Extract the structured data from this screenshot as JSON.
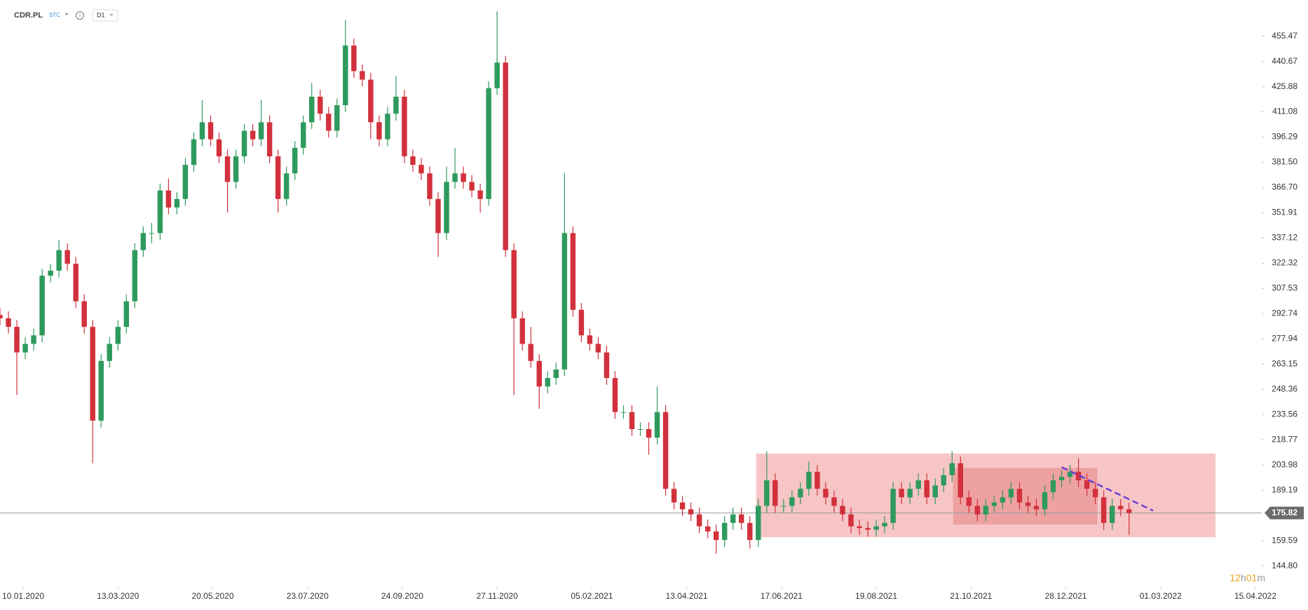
{
  "chart_data": {
    "type": "candlestick",
    "symbol": "CDR.PL",
    "type_label": "STC",
    "interval": "D1",
    "countdown": [
      "12",
      "h",
      "01",
      "m"
    ],
    "up_color": "#2e9a5e",
    "down_color": "#d2313c",
    "xlim": [
      -11,
      590
    ],
    "ylim": [
      132.5,
      476.7
    ],
    "xticks": [
      {
        "value": 0,
        "label": "10.01.2020"
      },
      {
        "value": 45,
        "label": "13.03.2020"
      },
      {
        "value": 90,
        "label": "20.05.2020"
      },
      {
        "value": 135,
        "label": "23.07.2020"
      },
      {
        "value": 180,
        "label": "24.09.2020"
      },
      {
        "value": 225,
        "label": "27.11.2020"
      },
      {
        "value": 270,
        "label": "05.02.2021"
      },
      {
        "value": 315,
        "label": "13.04.2021"
      },
      {
        "value": 360,
        "label": "17.06.2021"
      },
      {
        "value": 405,
        "label": "19.08.2021"
      },
      {
        "value": 450,
        "label": "21.10.2021"
      },
      {
        "value": 495,
        "label": "28.12.2021"
      },
      {
        "value": 540,
        "label": "01.03.2022"
      },
      {
        "value": 585,
        "label": "15.04.2022"
      }
    ],
    "yticks": [
      {
        "value": 144.8,
        "label": "144.80"
      },
      159.59,
      189.19,
      203.98,
      218.77,
      233.56,
      248.36,
      263.15,
      277.94,
      292.74,
      307.53,
      322.32,
      337.12,
      351.91,
      {
        "value": 366.7,
        "label": "366.70"
      },
      {
        "value": 381.5,
        "label": "381.50"
      },
      396.29,
      411.08,
      425.88,
      440.67,
      455.47
    ],
    "zones": [
      {
        "x": [
          348,
          566
        ],
        "y": [
          161.6,
          210.7
        ],
        "color": "rgba(236,110,110,0.4)"
      },
      {
        "x": [
          441.5,
          510
        ],
        "y": [
          169.1,
          202.2
        ],
        "color": "rgba(220,80,80,0.3)"
      }
    ],
    "trend_line": {
      "x": [
        493,
        536.4
      ],
      "y": [
        202.7,
        177.2
      ],
      "color": "#6a3fd6"
    },
    "candles": [
      [
        -11,
        292,
        296,
        286,
        290
      ],
      [
        -7,
        290,
        294,
        281,
        285
      ],
      [
        -3,
        285,
        289,
        245,
        270
      ],
      [
        1,
        270,
        279,
        266,
        275
      ],
      [
        5,
        275,
        284,
        271,
        280
      ],
      [
        9,
        280,
        319,
        276,
        315
      ],
      [
        13,
        315,
        322,
        311,
        318
      ],
      [
        17,
        318,
        336,
        314,
        330
      ],
      [
        21,
        330,
        334,
        318,
        322
      ],
      [
        25,
        322,
        326,
        296,
        300
      ],
      [
        29,
        300,
        304,
        281,
        285
      ],
      [
        33,
        285,
        289,
        205,
        230
      ],
      [
        37,
        230,
        269,
        226,
        265
      ],
      [
        41,
        265,
        279,
        261,
        275
      ],
      [
        45,
        275,
        289,
        271,
        285
      ],
      [
        49,
        285,
        304,
        281,
        300
      ],
      [
        53,
        300,
        334,
        296,
        330
      ],
      [
        57,
        330,
        344,
        326,
        340
      ],
      [
        61,
        340,
        346,
        334,
        340
      ],
      [
        65,
        340,
        369,
        336,
        365
      ],
      [
        69,
        365,
        372,
        351,
        355
      ],
      [
        73,
        355,
        364,
        351,
        360
      ],
      [
        77,
        360,
        384,
        356,
        380
      ],
      [
        81,
        380,
        399,
        376,
        395
      ],
      [
        85,
        395,
        418,
        391,
        405
      ],
      [
        89,
        405,
        409,
        391,
        395
      ],
      [
        93,
        395,
        399,
        381,
        385
      ],
      [
        97,
        385,
        389,
        352,
        370
      ],
      [
        101,
        370,
        389,
        366,
        385
      ],
      [
        105,
        385,
        404,
        381,
        400
      ],
      [
        109,
        400,
        404,
        391,
        395
      ],
      [
        113,
        395,
        418,
        391,
        405
      ],
      [
        117,
        405,
        409,
        381,
        385
      ],
      [
        121,
        385,
        389,
        352,
        360
      ],
      [
        125,
        360,
        379,
        356,
        375
      ],
      [
        129,
        375,
        394,
        371,
        390
      ],
      [
        133,
        390,
        409,
        386,
        405
      ],
      [
        137,
        405,
        428,
        401,
        420
      ],
      [
        141,
        420,
        424,
        406,
        410
      ],
      [
        145,
        410,
        414,
        396,
        400
      ],
      [
        149,
        400,
        419,
        396,
        415
      ],
      [
        153,
        415,
        465,
        411,
        450
      ],
      [
        157,
        450,
        454,
        431,
        435
      ],
      [
        161,
        435,
        439,
        426,
        430
      ],
      [
        165,
        430,
        434,
        395,
        405
      ],
      [
        169,
        405,
        409,
        391,
        395
      ],
      [
        173,
        395,
        414,
        391,
        410
      ],
      [
        177,
        410,
        432,
        406,
        420
      ],
      [
        181,
        420,
        424,
        381,
        385
      ],
      [
        185,
        385,
        389,
        376,
        380
      ],
      [
        189,
        380,
        384,
        371,
        375
      ],
      [
        193,
        375,
        379,
        356,
        360
      ],
      [
        197,
        360,
        364,
        326,
        340
      ],
      [
        201,
        340,
        379,
        336,
        370
      ],
      [
        205,
        370,
        390,
        366,
        375
      ],
      [
        209,
        375,
        379,
        366,
        370
      ],
      [
        213,
        370,
        374,
        361,
        365
      ],
      [
        217,
        365,
        369,
        352,
        360
      ],
      [
        221,
        360,
        429,
        356,
        425
      ],
      [
        225,
        425,
        470,
        421,
        440
      ],
      [
        229,
        440,
        444,
        326,
        330
      ],
      [
        233,
        330,
        334,
        245,
        290
      ],
      [
        237,
        290,
        294,
        271,
        275
      ],
      [
        241,
        275,
        285,
        261,
        265
      ],
      [
        245,
        265,
        269,
        237,
        250
      ],
      [
        249,
        250,
        259,
        246,
        255
      ],
      [
        253,
        255,
        264,
        251,
        260
      ],
      [
        257,
        260,
        375,
        256,
        340
      ],
      [
        261,
        340,
        344,
        291,
        295
      ],
      [
        265,
        295,
        299,
        276,
        280
      ],
      [
        269,
        280,
        284,
        271,
        275
      ],
      [
        273,
        275,
        279,
        266,
        270
      ],
      [
        277,
        270,
        274,
        251,
        255
      ],
      [
        281,
        255,
        259,
        231,
        235
      ],
      [
        285,
        235,
        239,
        231,
        235
      ],
      [
        289,
        235,
        239,
        221,
        225
      ],
      [
        293,
        225,
        229,
        221,
        225
      ],
      [
        297,
        225,
        229,
        210,
        220
      ],
      [
        301,
        220,
        250,
        216,
        235
      ],
      [
        305,
        235,
        239,
        186,
        190
      ],
      [
        309,
        190,
        194,
        178,
        182
      ],
      [
        313,
        182,
        186,
        174,
        178
      ],
      [
        317,
        178,
        182,
        171,
        175
      ],
      [
        321,
        175,
        179,
        164,
        168
      ],
      [
        325,
        168,
        172,
        161,
        165
      ],
      [
        329,
        165,
        169,
        152,
        160
      ],
      [
        333,
        160,
        174,
        156,
        170
      ],
      [
        337,
        170,
        179,
        166,
        175
      ],
      [
        341,
        175,
        179,
        166,
        170
      ],
      [
        345,
        170,
        174,
        155,
        160
      ],
      [
        349,
        160,
        184,
        156,
        180
      ],
      [
        353,
        180,
        212,
        176,
        195
      ],
      [
        357,
        195,
        199,
        176,
        180
      ],
      [
        361,
        180,
        184,
        176,
        180
      ],
      [
        365,
        180,
        189,
        176,
        185
      ],
      [
        369,
        185,
        194,
        181,
        190
      ],
      [
        373,
        190,
        206,
        186,
        200
      ],
      [
        377,
        200,
        204,
        186,
        190
      ],
      [
        381,
        190,
        194,
        181,
        185
      ],
      [
        385,
        185,
        189,
        176,
        180
      ],
      [
        389,
        180,
        184,
        171,
        175
      ],
      [
        393,
        175,
        179,
        164,
        168
      ],
      [
        397,
        168,
        172,
        163,
        167
      ],
      [
        401,
        167,
        171,
        162,
        166
      ],
      [
        405,
        166,
        172,
        162,
        168
      ],
      [
        409,
        168,
        174,
        164,
        170
      ],
      [
        413,
        170,
        194,
        166,
        190
      ],
      [
        417,
        190,
        194,
        181,
        185
      ],
      [
        421,
        185,
        194,
        181,
        190
      ],
      [
        425,
        190,
        199,
        186,
        195
      ],
      [
        429,
        195,
        199,
        181,
        185
      ],
      [
        433,
        185,
        196,
        181,
        192
      ],
      [
        437,
        192,
        202,
        188,
        198
      ],
      [
        441,
        198,
        212,
        194,
        205
      ],
      [
        445,
        205,
        209,
        181,
        185
      ],
      [
        449,
        185,
        189,
        176,
        180
      ],
      [
        453,
        180,
        184,
        171,
        175
      ],
      [
        457,
        175,
        184,
        171,
        180
      ],
      [
        461,
        180,
        186,
        176,
        182
      ],
      [
        465,
        182,
        189,
        178,
        185
      ],
      [
        469,
        185,
        194,
        181,
        190
      ],
      [
        473,
        190,
        194,
        178,
        182
      ],
      [
        477,
        182,
        186,
        176,
        180
      ],
      [
        481,
        180,
        184,
        174,
        178
      ],
      [
        485,
        178,
        192,
        174,
        188
      ],
      [
        489,
        188,
        199,
        184,
        195
      ],
      [
        493,
        195,
        201,
        191,
        197
      ],
      [
        497,
        197,
        204,
        193,
        200
      ],
      [
        501,
        200,
        208,
        191,
        195
      ],
      [
        505,
        195,
        199,
        186,
        190
      ],
      [
        509,
        190,
        194,
        181,
        185
      ],
      [
        513,
        185,
        189,
        166,
        170
      ],
      [
        517,
        170,
        184,
        166,
        180
      ],
      [
        521,
        180,
        184,
        174,
        178
      ],
      [
        525,
        178,
        182,
        163,
        175.82
      ]
    ]
  }
}
